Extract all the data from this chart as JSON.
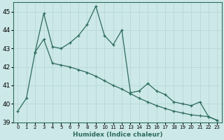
{
  "xlabel": "Humidex (Indice chaleur)",
  "ylabel": "",
  "background_color": "#cce8e8",
  "line_color": "#2d6b5e",
  "grid_color": "#b8d8d8",
  "xlim_min": -0.5,
  "xlim_max": 23.5,
  "ylim_min": 39.0,
  "ylim_max": 45.5,
  "yticks": [
    39,
    40,
    41,
    42,
    43,
    44,
    45
  ],
  "xticks": [
    0,
    1,
    2,
    3,
    4,
    5,
    6,
    7,
    8,
    9,
    10,
    11,
    12,
    13,
    14,
    15,
    16,
    17,
    18,
    19,
    20,
    21,
    22,
    23
  ],
  "line1_x": [
    0,
    1,
    2,
    3,
    4,
    5,
    6,
    7,
    8,
    9,
    10,
    11,
    12,
    13,
    14,
    15,
    16,
    17,
    18,
    19,
    20,
    21,
    22,
    23
  ],
  "line1_y": [
    39.6,
    40.3,
    42.8,
    44.9,
    43.1,
    43.0,
    43.3,
    43.7,
    44.3,
    45.3,
    43.7,
    43.2,
    44.0,
    40.6,
    40.7,
    41.1,
    40.7,
    40.5,
    40.1,
    40.0,
    39.9,
    40.1,
    39.3,
    39.1
  ],
  "line2_x": [
    2,
    3,
    4,
    5,
    6,
    7,
    8,
    9,
    10,
    11,
    12,
    13,
    14,
    15,
    16,
    17,
    18,
    19,
    20,
    21,
    22,
    23
  ],
  "line2_y": [
    42.8,
    43.5,
    42.2,
    42.1,
    42.0,
    41.85,
    41.7,
    41.5,
    41.25,
    41.0,
    40.8,
    40.55,
    40.3,
    40.1,
    39.9,
    39.75,
    39.6,
    39.5,
    39.4,
    39.35,
    39.3,
    39.1
  ]
}
